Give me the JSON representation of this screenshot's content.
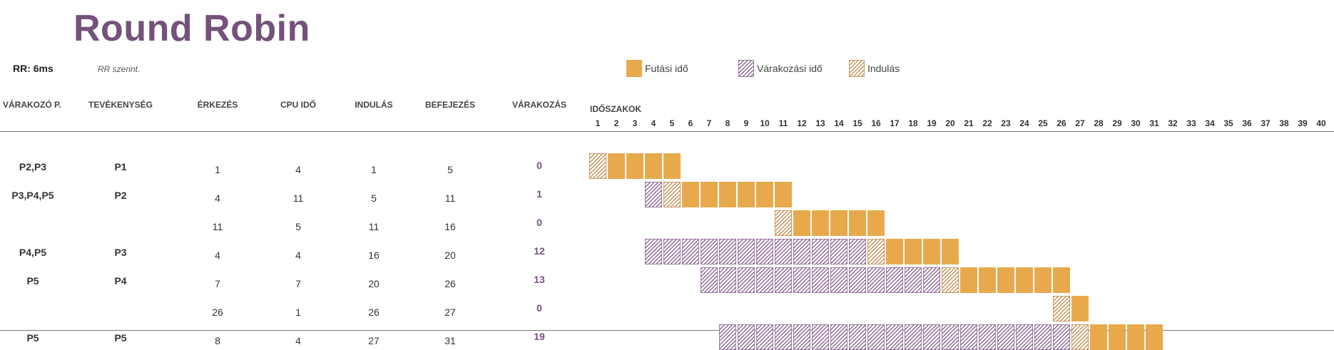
{
  "title": "Round Robin",
  "rr_label": "RR: 6ms",
  "note": "RR szerint.",
  "legend": {
    "run": "Futási idő",
    "wait": "Várakozási idő",
    "start": "Indulás"
  },
  "headers": {
    "waiting_p": "VÁRAKOZÓ P.",
    "activity": "TEVÉKENYSÉG",
    "arrival": "ÉRKEZÉS",
    "cpu": "CPU IDŐ",
    "start": "INDULÁS",
    "end": "BEFEJEZÉS",
    "waiting": "VÁRAKOZÁS",
    "periods": "IDŐSZAKOK"
  },
  "colors": {
    "title": "#74527a",
    "run": "#e8a94d",
    "wait": "#8d6a94",
    "start": "#c4925a"
  },
  "chart_data": {
    "type": "table",
    "time_ticks": [
      1,
      2,
      3,
      4,
      5,
      6,
      7,
      8,
      9,
      10,
      11,
      12,
      13,
      14,
      15,
      16,
      17,
      18,
      19,
      20,
      21,
      22,
      23,
      24,
      25,
      26,
      27,
      28,
      29,
      30,
      31,
      32,
      33,
      34,
      35,
      36,
      37,
      38,
      39,
      40
    ],
    "rows": [
      {
        "waiting_p": "P2,P3",
        "activity": "P1",
        "arrival": "1",
        "cpu": "4",
        "start": "1",
        "end": "5",
        "waiting": "0",
        "segments": [
          {
            "type": "start",
            "from": 1,
            "to": 1
          },
          {
            "type": "run",
            "from": 2,
            "to": 5
          }
        ]
      },
      {
        "waiting_p": "P3,P4,P5",
        "activity": "P2",
        "arrival": "4",
        "cpu": "11",
        "start": "5",
        "end": "11",
        "waiting": "1",
        "segments": [
          {
            "type": "wait",
            "from": 4,
            "to": 4
          },
          {
            "type": "start",
            "from": 5,
            "to": 5
          },
          {
            "type": "run",
            "from": 6,
            "to": 11
          }
        ]
      },
      {
        "waiting_p": "",
        "activity": "",
        "arrival": "11",
        "cpu": "5",
        "start": "11",
        "end": "16",
        "waiting": "0",
        "segments": [
          {
            "type": "start",
            "from": 11,
            "to": 11
          },
          {
            "type": "run",
            "from": 12,
            "to": 16
          }
        ]
      },
      {
        "waiting_p": "P4,P5",
        "activity": "P3",
        "arrival": "4",
        "cpu": "4",
        "start": "16",
        "end": "20",
        "waiting": "12",
        "segments": [
          {
            "type": "wait",
            "from": 4,
            "to": 15
          },
          {
            "type": "start",
            "from": 16,
            "to": 16
          },
          {
            "type": "run",
            "from": 17,
            "to": 20
          }
        ]
      },
      {
        "waiting_p": "P5",
        "activity": "P4",
        "arrival": "7",
        "cpu": "7",
        "start": "20",
        "end": "26",
        "waiting": "13",
        "segments": [
          {
            "type": "wait",
            "from": 7,
            "to": 19
          },
          {
            "type": "start",
            "from": 20,
            "to": 20
          },
          {
            "type": "run",
            "from": 21,
            "to": 26
          }
        ]
      },
      {
        "waiting_p": "",
        "activity": "",
        "arrival": "26",
        "cpu": "1",
        "start": "26",
        "end": "27",
        "waiting": "0",
        "segments": [
          {
            "type": "start",
            "from": 26,
            "to": 26
          },
          {
            "type": "run",
            "from": 27,
            "to": 27
          }
        ]
      },
      {
        "waiting_p": "P5",
        "activity": "P5",
        "arrival": "8",
        "cpu": "4",
        "start": "27",
        "end": "31",
        "waiting": "19",
        "segments": [
          {
            "type": "wait",
            "from": 8,
            "to": 26
          },
          {
            "type": "start",
            "from": 27,
            "to": 27
          },
          {
            "type": "run",
            "from": 28,
            "to": 31
          }
        ]
      }
    ]
  }
}
